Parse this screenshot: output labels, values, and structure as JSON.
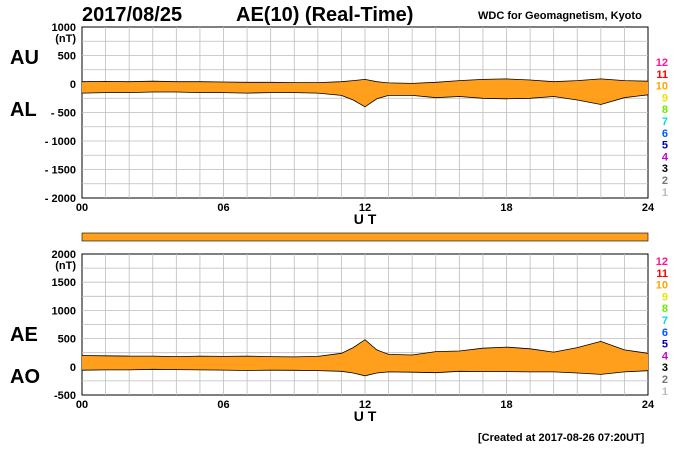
{
  "header": {
    "date": "2017/08/25",
    "title": "AE(10) (Real-Time)",
    "source": "WDC for Geomagnetism, Kyoto"
  },
  "footer": {
    "created": "[Created at 2017-08-26 07:20UT]"
  },
  "colors": {
    "fill": "#ff9f1c",
    "grid": "#bdbdbd",
    "stations": [
      "#ff1493",
      "#ff0000",
      "#ffa500",
      "#e6e600",
      "#66ee00",
      "#00dddd",
      "#0055ff",
      "#0000aa",
      "#cc00cc",
      "#000000",
      "#777777",
      "#bbbbbb"
    ]
  },
  "station_labels": [
    "12",
    "11",
    "10",
    "9",
    "8",
    "7",
    "6",
    "5",
    "4",
    "3",
    "2",
    "1"
  ],
  "chart_data": [
    {
      "type": "area",
      "panel": "AU/AL",
      "series_labels": [
        "AU",
        "AL"
      ],
      "xlabel": "U T",
      "x_ticks": [
        "00",
        "06",
        "12",
        "18",
        "24"
      ],
      "y_ticks": [
        "1000",
        "500",
        "0",
        "- 500",
        "- 1000",
        "- 1500",
        "- 2000"
      ],
      "y_unit": "(nT)",
      "xlim": [
        0,
        24
      ],
      "ylim": [
        -2000,
        1000
      ],
      "hours": [
        0,
        1,
        2,
        3,
        4,
        5,
        6,
        7,
        8,
        9,
        10,
        11,
        11.5,
        12,
        12.5,
        13,
        14,
        15,
        16,
        17,
        18,
        19,
        20,
        21,
        22,
        23,
        24
      ],
      "series": [
        {
          "values": [
            40,
            45,
            40,
            50,
            40,
            40,
            35,
            30,
            30,
            25,
            25,
            40,
            60,
            80,
            40,
            20,
            10,
            30,
            60,
            80,
            90,
            70,
            40,
            60,
            90,
            60,
            50
          ]
        },
        {
          "values": [
            -160,
            -150,
            -150,
            -140,
            -140,
            -150,
            -150,
            -160,
            -150,
            -150,
            -160,
            -200,
            -280,
            -400,
            -260,
            -200,
            -200,
            -240,
            -220,
            -250,
            -260,
            -250,
            -220,
            -280,
            -360,
            -240,
            -190
          ]
        }
      ]
    },
    {
      "type": "area",
      "panel": "AE/AO",
      "series_labels": [
        "AE",
        "AO"
      ],
      "xlabel": "U T",
      "x_ticks": [
        "00",
        "06",
        "12",
        "18",
        "24"
      ],
      "y_ticks": [
        "2000",
        "1500",
        "1000",
        "500",
        "0",
        "-500"
      ],
      "y_unit": "(nT)",
      "xlim": [
        0,
        24
      ],
      "ylim": [
        -500,
        2000
      ],
      "hours": [
        0,
        1,
        2,
        3,
        4,
        5,
        6,
        7,
        8,
        9,
        10,
        11,
        11.5,
        12,
        12.5,
        13,
        14,
        15,
        16,
        17,
        18,
        19,
        20,
        21,
        22,
        23,
        24
      ],
      "series": [
        {
          "values": [
            200,
            195,
            190,
            190,
            180,
            190,
            185,
            190,
            180,
            175,
            185,
            240,
            340,
            480,
            300,
            220,
            210,
            270,
            280,
            330,
            350,
            320,
            260,
            340,
            450,
            300,
            240
          ]
        },
        {
          "values": [
            -60,
            -55,
            -55,
            -45,
            -50,
            -55,
            -58,
            -65,
            -60,
            -62,
            -68,
            -80,
            -110,
            -160,
            -110,
            -90,
            -95,
            -105,
            -80,
            -85,
            -85,
            -90,
            -90,
            -110,
            -135,
            -90,
            -70
          ]
        }
      ]
    }
  ]
}
